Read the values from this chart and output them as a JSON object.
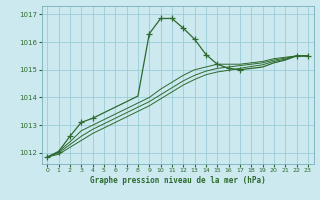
{
  "title": "Graphe pression niveau de la mer (hPa)",
  "background_color": "#cce9f0",
  "grid_color": "#99cdd8",
  "line_color": "#2d6a2d",
  "xlim": [
    -0.5,
    23.5
  ],
  "ylim": [
    1011.6,
    1017.3
  ],
  "yticks": [
    1012,
    1013,
    1014,
    1015,
    1016,
    1017
  ],
  "xticks": [
    0,
    1,
    2,
    3,
    4,
    5,
    6,
    7,
    8,
    9,
    10,
    11,
    12,
    13,
    14,
    15,
    16,
    17,
    18,
    19,
    20,
    21,
    22,
    23
  ],
  "line1_x": [
    0,
    1,
    2,
    3,
    4,
    5,
    6,
    7,
    8,
    9,
    10,
    11,
    12,
    13,
    14,
    15,
    16,
    17,
    18,
    19,
    20,
    21,
    22,
    23
  ],
  "line1_y": [
    1011.85,
    1012.05,
    1012.6,
    1013.1,
    1013.25,
    1013.45,
    1013.65,
    1013.85,
    1014.05,
    1016.3,
    1016.85,
    1016.85,
    1016.5,
    1016.1,
    1015.55,
    1015.2,
    1015.05,
    1015.0,
    1015.05,
    1015.1,
    1015.25,
    1015.35,
    1015.5,
    1015.5
  ],
  "line2_x": [
    0,
    1,
    2,
    3,
    4,
    5,
    6,
    7,
    8,
    9,
    10,
    11,
    12,
    13,
    14,
    15,
    16,
    17,
    18,
    19,
    20,
    21,
    22,
    23
  ],
  "line2_y": [
    1011.85,
    1012.05,
    1012.4,
    1012.8,
    1013.0,
    1013.2,
    1013.4,
    1013.6,
    1013.8,
    1014.0,
    1014.3,
    1014.55,
    1014.8,
    1015.0,
    1015.1,
    1015.2,
    1015.2,
    1015.2,
    1015.25,
    1015.3,
    1015.4,
    1015.45,
    1015.5,
    1015.5
  ],
  "line3_x": [
    0,
    1,
    2,
    3,
    4,
    5,
    6,
    7,
    8,
    9,
    10,
    11,
    12,
    13,
    14,
    15,
    16,
    17,
    18,
    19,
    20,
    21,
    22,
    23
  ],
  "line3_y": [
    1011.85,
    1012.0,
    1012.3,
    1012.6,
    1012.85,
    1013.05,
    1013.25,
    1013.45,
    1013.65,
    1013.85,
    1014.1,
    1014.35,
    1014.6,
    1014.8,
    1014.95,
    1015.05,
    1015.1,
    1015.15,
    1015.2,
    1015.25,
    1015.35,
    1015.42,
    1015.5,
    1015.5
  ],
  "line4_x": [
    0,
    1,
    2,
    3,
    4,
    5,
    6,
    7,
    8,
    9,
    10,
    11,
    12,
    13,
    14,
    15,
    16,
    17,
    18,
    19,
    20,
    21,
    22,
    23
  ],
  "line4_y": [
    1011.85,
    1011.95,
    1012.2,
    1012.45,
    1012.7,
    1012.9,
    1013.1,
    1013.3,
    1013.5,
    1013.7,
    1013.95,
    1014.2,
    1014.45,
    1014.65,
    1014.82,
    1014.92,
    1014.98,
    1015.05,
    1015.12,
    1015.18,
    1015.3,
    1015.38,
    1015.5,
    1015.5
  ],
  "markers_x": [
    0,
    1,
    2,
    3,
    4,
    9,
    10,
    11,
    12,
    13,
    14,
    15,
    16,
    17,
    22,
    23
  ],
  "markers_y": [
    1011.85,
    1012.05,
    1012.6,
    1013.1,
    1013.25,
    1016.3,
    1016.85,
    1016.85,
    1016.5,
    1016.1,
    1015.55,
    1015.2,
    1015.05,
    1015.0,
    1015.5,
    1015.5
  ]
}
